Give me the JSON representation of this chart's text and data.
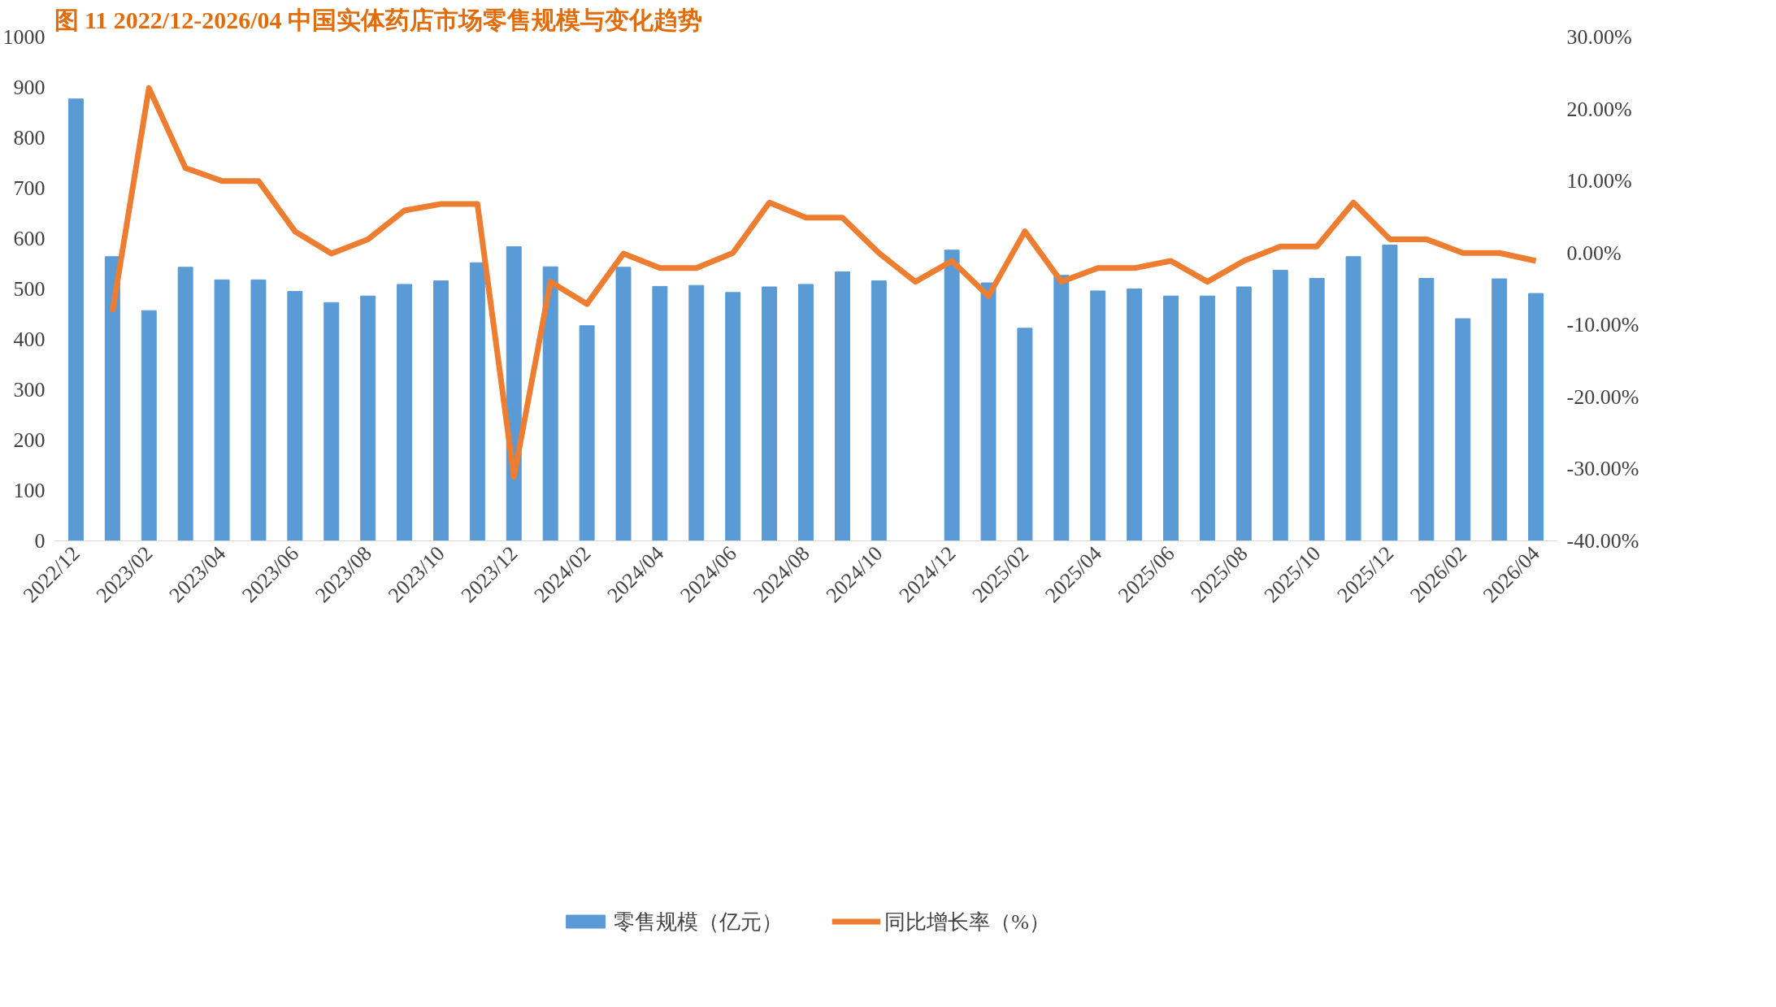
{
  "chart_data": {
    "type": "bar",
    "title": "图 11 2022/12-2026/04 中国实体药店市场零售规模与变化趋势",
    "categories": [
      "2022/12",
      null,
      "2023/02",
      null,
      "2023/04",
      null,
      "2023/06",
      null,
      "2023/08",
      null,
      "2023/10",
      null,
      "2023/12",
      null,
      "2024/02",
      null,
      "2024/04",
      null,
      "2024/06",
      null,
      "2024/08",
      null,
      "2024/10",
      null,
      "2024/12",
      null,
      "2025/02",
      null,
      "2025/04",
      null,
      "2025/06",
      null,
      "2025/08",
      null,
      "2025/10",
      null,
      "2025/12",
      null,
      "2026/02",
      null,
      "2026/04"
    ],
    "series": [
      {
        "name": "零售规模（亿元）",
        "color": "#5b9bd5",
        "values": [
          877,
          564,
          457,
          543,
          518,
          518,
          495,
          473,
          486,
          509,
          516,
          552,
          584,
          544,
          427,
          543,
          505,
          507,
          493,
          504,
          509,
          534,
          516,
          null,
          577,
          512,
          422,
          527,
          496,
          500,
          486,
          486,
          504,
          537,
          521,
          564,
          587,
          521,
          441,
          520,
          491
        ]
      },
      {
        "name": "同比增长率（%）",
        "type": "line",
        "axis": "y2",
        "color": "#ed7d31",
        "values": [
          null,
          -8.2,
          22.9,
          11.8,
          10.0,
          10.0,
          3.0,
          -0.1,
          1.9,
          5.9,
          6.8,
          6.8,
          -31.1,
          -4.0,
          -7.1,
          -0.1,
          -2.1,
          -2.1,
          0,
          7.0,
          4.9,
          4.9,
          0,
          -4.0,
          -1.1,
          -6.0,
          3.0,
          -4.0,
          -2.1,
          -2.1,
          -1.1,
          -4.0,
          -1.1,
          0.9,
          0.9,
          7.0,
          1.9,
          1.9,
          0,
          0,
          -1.1
        ]
      }
    ],
    "ylim": [
      0,
      1000
    ],
    "yticks": [
      0,
      100,
      200,
      300,
      400,
      500,
      600,
      700,
      800,
      900,
      1000
    ],
    "y2lim": [
      -40,
      30
    ],
    "y2ticks": [
      {
        "value": -40,
        "label": "-40.00%"
      },
      {
        "value": -30,
        "label": "-30.00%"
      },
      {
        "value": -20,
        "label": "-20.00%"
      },
      {
        "value": -10,
        "label": "-10.00%"
      },
      {
        "value": 0,
        "label": "0.00%"
      },
      {
        "value": 10,
        "label": "10.00%"
      },
      {
        "value": 20,
        "label": "20.00%"
      },
      {
        "value": 30,
        "label": "30.00%"
      }
    ],
    "grid": false,
    "legend": "bottom",
    "marker": "none",
    "line_style": "solid"
  }
}
